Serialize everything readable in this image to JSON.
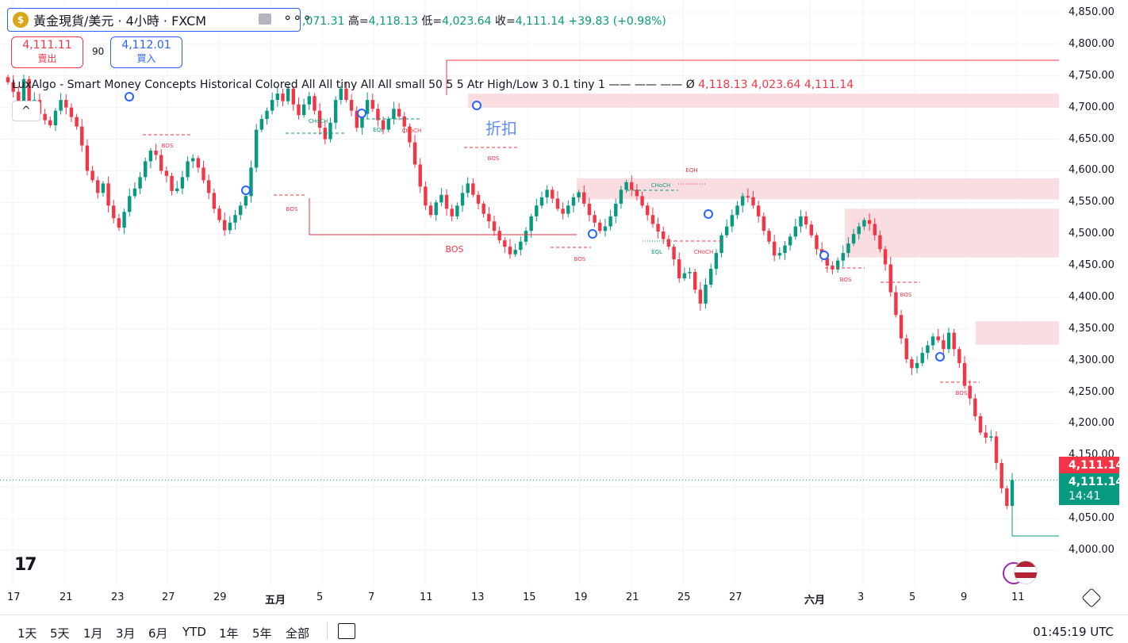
{
  "header": {
    "symbol_title": "黃金現貨/美元 · 4小時 · FXCM",
    "coin_icon": "gold-coin-icon",
    "ohlc_open_partial": ",071.31",
    "ohlc_high_label": "高=",
    "ohlc_high": "4,118.13",
    "ohlc_low_label": "低=",
    "ohlc_low": "4,023.64",
    "ohlc_close_label": "收=",
    "ohlc_close": "4,111.14",
    "ohlc_change": "+39.83 (+0.98%)"
  },
  "trade": {
    "sell_price": "4,111.11",
    "sell_label": "賣出",
    "spread": "90",
    "buy_price": "4,112.01",
    "buy_label": "買入"
  },
  "indicator": {
    "text": "LuxAlgo - Smart Money Concepts Historical Colored All All tiny All All small 50 5 5 Atr High/Low 3 0.1 tiny 1 —— —— ——  Ø",
    "v1": "4,118.13",
    "v2": "4,023.64",
    "v3": "4,111.14",
    "collapse": "^"
  },
  "watermark": "折扣",
  "price_tags": {
    "last": "4,111.14",
    "current": "4,111.14",
    "countdown": "14:41"
  },
  "bottom": {
    "ranges": [
      "1天",
      "5天",
      "1月",
      "3月",
      "6月",
      "YTD",
      "1年",
      "5年",
      "全部"
    ],
    "clock": "01:45:19 UTC"
  },
  "colors": {
    "up": "#089981",
    "down": "#f23645",
    "zone": "#f8d7da",
    "accent": "#2962ff"
  },
  "chart_data": {
    "type": "candlestick",
    "title": "黃金現貨/美元 · 4小時 · FXCM",
    "ylim": [
      3975,
      4862
    ],
    "y_ticks": [
      "4,850.00",
      "4,800.00",
      "4,750.00",
      "4,700.00",
      "4,650.00",
      "4,600.00",
      "4,550.00",
      "4,500.00",
      "4,450.00",
      "4,400.00",
      "4,350.00",
      "4,300.00",
      "4,250.00",
      "4,200.00",
      "4,150.00",
      "4,100.00",
      "4,050.00",
      "4,000.00"
    ],
    "x_ticks": [
      "17",
      "21",
      "23",
      "27",
      "29",
      "五月",
      "5",
      "7",
      "11",
      "13",
      "15",
      "19",
      "21",
      "25",
      "27",
      "六月",
      "3",
      "5",
      "9",
      "11"
    ],
    "close_path": [
      4740,
      4725,
      4710,
      4745,
      4705,
      4712,
      4690,
      4680,
      4672,
      4695,
      4712,
      4700,
      4685,
      4670,
      4640,
      4600,
      4585,
      4565,
      4580,
      4545,
      4525,
      4510,
      4535,
      4560,
      4572,
      4590,
      4615,
      4632,
      4625,
      4600,
      4592,
      4568,
      4572,
      4590,
      4615,
      4620,
      4605,
      4585,
      4565,
      4540,
      4522,
      4506,
      4518,
      4530,
      4545,
      4560,
      4605,
      4665,
      4682,
      4695,
      4712,
      4722,
      4710,
      4730,
      4705,
      4688,
      4705,
      4718,
      4695,
      4668,
      4650,
      4676,
      4712,
      4730,
      4712,
      4695,
      4668,
      4690,
      4712,
      4698,
      4680,
      4665,
      4682,
      4698,
      4686,
      4670,
      4645,
      4610,
      4575,
      4545,
      4530,
      4550,
      4562,
      4540,
      4528,
      4545,
      4565,
      4580,
      4562,
      4548,
      4532,
      4520,
      4505,
      4490,
      4480,
      4468,
      4475,
      4488,
      4505,
      4528,
      4545,
      4558,
      4570,
      4556,
      4540,
      4532,
      4545,
      4558,
      4566,
      4548,
      4530,
      4518,
      4505,
      4512,
      4528,
      4548,
      4570,
      4582,
      4570,
      4560,
      4545,
      4530,
      4516,
      4504,
      4492,
      4480,
      4460,
      4430,
      4438,
      4440,
      4412,
      4390,
      4420,
      4445,
      4470,
      4498,
      4512,
      4530,
      4545,
      4560,
      4558,
      4545,
      4528,
      4505,
      4488,
      4466,
      4470,
      4482,
      4496,
      4512,
      4528,
      4515,
      4498,
      4476,
      4462,
      4450,
      4444,
      4458,
      4470,
      4485,
      4500,
      4512,
      4522,
      4516,
      4498,
      4476,
      4452,
      4408,
      4372,
      4335,
      4302,
      4288,
      4296,
      4312,
      4324,
      4338,
      4332,
      4318,
      4344,
      4318,
      4296,
      4260,
      4240,
      4212,
      4186,
      4178,
      4180,
      4138,
      4098,
      4070,
      4111
    ],
    "zones": [
      {
        "top": 4722,
        "bottom": 4700,
        "from": 4,
        "to": 5
      },
      {
        "top": 4588,
        "bottom": 4555,
        "from": 3,
        "to": 5
      },
      {
        "top": 4540,
        "bottom": 4463,
        "from": 4,
        "to": 5
      },
      {
        "top": 4362,
        "bottom": 4325,
        "from": 4,
        "to": 5
      }
    ],
    "labels": [
      "BOS",
      "CHoCH",
      "EQL",
      "CHoCH",
      "BOS",
      "BOS",
      "BOS",
      "BOS",
      "CHoCH",
      "EQL",
      "CHoCH",
      "EQH",
      "BOS",
      "BOS",
      "BOS"
    ],
    "last_price": 4111.14
  }
}
